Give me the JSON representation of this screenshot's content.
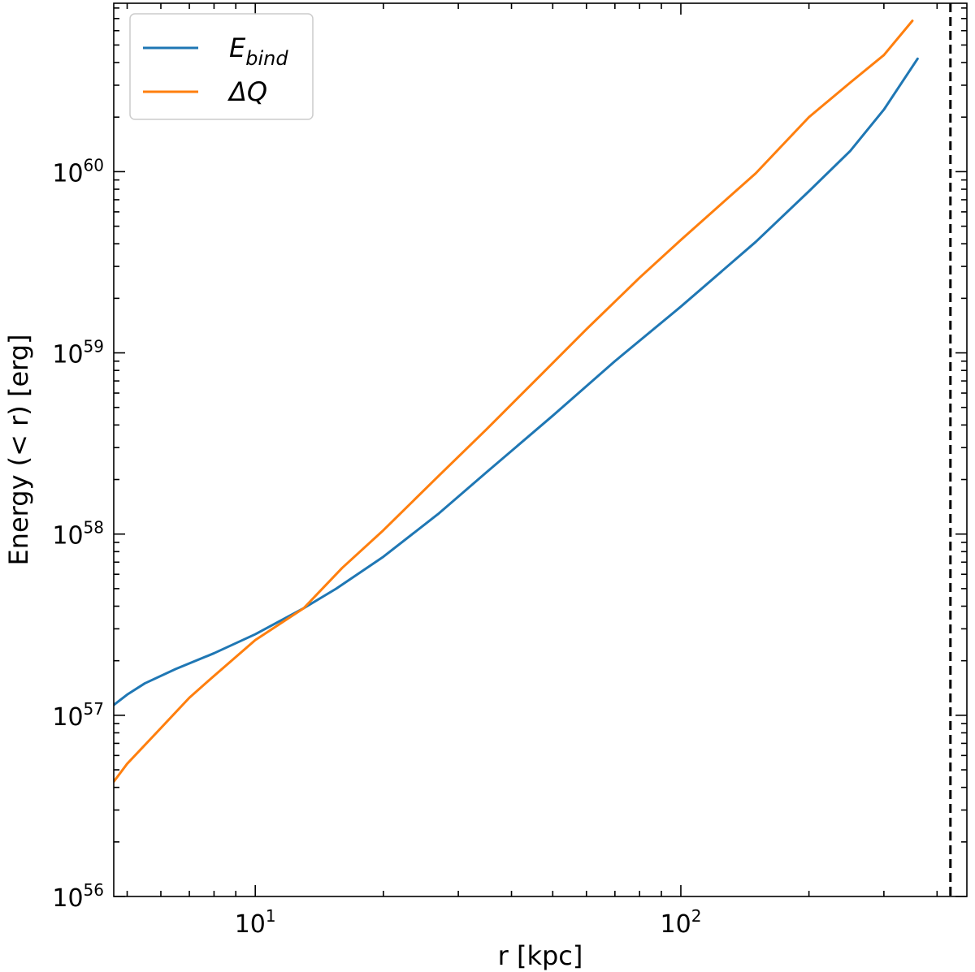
{
  "chart_data": {
    "type": "line",
    "xlabel": "r [kpc]",
    "ylabel": "Energy (< r) [erg]",
    "x_scale": "log",
    "y_scale": "log",
    "xlim": [
      4.65,
      470
    ],
    "ylim": [
      1e+56,
      8.5e+60
    ],
    "x_ticks": [
      {
        "value": 10,
        "base": "10",
        "exp": "1"
      },
      {
        "value": 100,
        "base": "10",
        "exp": "2"
      }
    ],
    "y_ticks": [
      {
        "value": 1e+56,
        "base": "10",
        "exp": "56"
      },
      {
        "value": 1e+57,
        "base": "10",
        "exp": "57"
      },
      {
        "value": 1e+58,
        "base": "10",
        "exp": "58"
      },
      {
        "value": 1e+59,
        "base": "10",
        "exp": "59"
      },
      {
        "value": 1e+60,
        "base": "10",
        "exp": "60"
      }
    ],
    "grid": false,
    "legend_position": "top-left",
    "tick_direction": "in",
    "vline": {
      "x": 430,
      "style": "dashed",
      "color": "#000000"
    },
    "series": [
      {
        "name": "E_bind",
        "label_main": "E",
        "label_sub": "bind",
        "color": "#1f77b4",
        "x": [
          4.65,
          5,
          5.5,
          6.5,
          8,
          10,
          13,
          15.5,
          20,
          27,
          35,
          50,
          70,
          100,
          150,
          200,
          250,
          300,
          360
        ],
        "y": [
          1.14e+57,
          1.3e+57,
          1.5e+57,
          1.8e+57,
          2.2e+57,
          2.8e+57,
          3.9e+57,
          5e+57,
          7.5e+57,
          1.3e+58,
          2.2e+58,
          4.5e+58,
          9e+58,
          1.8e+59,
          4.1e+59,
          7.8e+59,
          1.3e+60,
          2.2e+60,
          4.2e+60
        ]
      },
      {
        "name": "ΔQ",
        "label_main": "ΔQ",
        "label_sub": "",
        "color": "#ff7f0e",
        "x": [
          4.65,
          5,
          6,
          7,
          8,
          10,
          13,
          16,
          20,
          27,
          35,
          47,
          60,
          80,
          100,
          150,
          200,
          250,
          300,
          350
        ],
        "y": [
          4.3e+56,
          5.4e+56,
          8.5e+56,
          1.25e+57,
          1.65e+57,
          2.6e+57,
          3.9e+57,
          6.5e+57,
          1.05e+58,
          2.1e+58,
          3.8e+58,
          7.6e+58,
          1.35e+59,
          2.6e+59,
          4.2e+59,
          9.8e+59,
          2e+60,
          3.1e+60,
          4.4e+60,
          6.8e+60
        ]
      }
    ]
  }
}
